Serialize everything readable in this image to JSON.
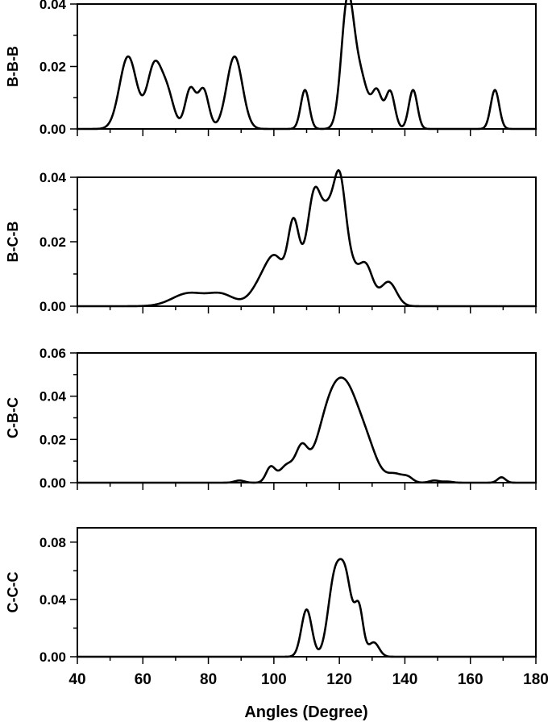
{
  "chart_data": [
    {
      "type": "line",
      "ylabel": "B-B-B",
      "xlim": [
        40,
        180
      ],
      "ylim": [
        0,
        0.04
      ],
      "yticks": [
        "0.00",
        "0.02",
        "0.04"
      ],
      "peaks": [
        [
          55.5,
          0.0232,
          2.6
        ],
        [
          63.5,
          0.02,
          2.2
        ],
        [
          67.5,
          0.0105,
          2.0
        ],
        [
          74.5,
          0.0128,
          1.6
        ],
        [
          78.5,
          0.0125,
          1.6
        ],
        [
          88,
          0.0232,
          2.4
        ],
        [
          109.5,
          0.0125,
          1.3
        ],
        [
          122.5,
          0.04,
          1.9
        ],
        [
          126.5,
          0.016,
          2.2
        ],
        [
          131.5,
          0.0115,
          1.5
        ],
        [
          135.5,
          0.012,
          1.4
        ],
        [
          142.5,
          0.0125,
          1.3
        ],
        [
          167.5,
          0.0125,
          1.3
        ]
      ]
    },
    {
      "type": "line",
      "ylabel": "B-C-B",
      "xlim": [
        40,
        180
      ],
      "ylim": [
        0,
        0.04
      ],
      "yticks": [
        "0.00",
        "0.02",
        "0.04"
      ],
      "peaks": [
        [
          74,
          0.004,
          5.0
        ],
        [
          84,
          0.0035,
          4.0
        ],
        [
          97,
          0.008,
          3.5
        ],
        [
          101,
          0.011,
          2.8
        ],
        [
          106,
          0.023,
          1.7
        ],
        [
          109.5,
          0.008,
          2.0
        ],
        [
          112.5,
          0.031,
          2.0
        ],
        [
          116.5,
          0.024,
          2.0
        ],
        [
          120,
          0.032,
          1.8
        ],
        [
          123,
          0.012,
          2.2
        ],
        [
          128,
          0.0125,
          2.2
        ],
        [
          135,
          0.0075,
          2.4
        ]
      ]
    },
    {
      "type": "line",
      "ylabel": "C-B-C",
      "xlim": [
        40,
        180
      ],
      "ylim": [
        0,
        0.06
      ],
      "yticks": [
        "0.00",
        "0.02",
        "0.04",
        "0.06"
      ],
      "peaks": [
        [
          89.5,
          0.001,
          1.5
        ],
        [
          99,
          0.007,
          1.4
        ],
        [
          104,
          0.008,
          2.2
        ],
        [
          108.5,
          0.014,
          1.8
        ],
        [
          117,
          0.03,
          4.0
        ],
        [
          123,
          0.034,
          4.0
        ],
        [
          129,
          0.01,
          3.0
        ],
        [
          137,
          0.004,
          2.5
        ],
        [
          141,
          0.002,
          1.5
        ],
        [
          149,
          0.001,
          1.5
        ],
        [
          153,
          0.0005,
          1.5
        ],
        [
          169.5,
          0.0025,
          1.2
        ]
      ]
    },
    {
      "type": "line",
      "ylabel": "C-C-C",
      "xlim": [
        40,
        180
      ],
      "ylim": [
        0,
        0.09
      ],
      "yticks": [
        "0.00",
        "0.04",
        "0.08"
      ],
      "peaks": [
        [
          110,
          0.033,
          1.6
        ],
        [
          118.5,
          0.052,
          2.0
        ],
        [
          122,
          0.05,
          1.9
        ],
        [
          126,
          0.032,
          1.3
        ],
        [
          130.5,
          0.01,
          1.6
        ]
      ]
    }
  ],
  "xaxis": {
    "label": "Angles (Degree)",
    "ticks": [
      "40",
      "60",
      "80",
      "100",
      "120",
      "140",
      "160",
      "180"
    ]
  }
}
